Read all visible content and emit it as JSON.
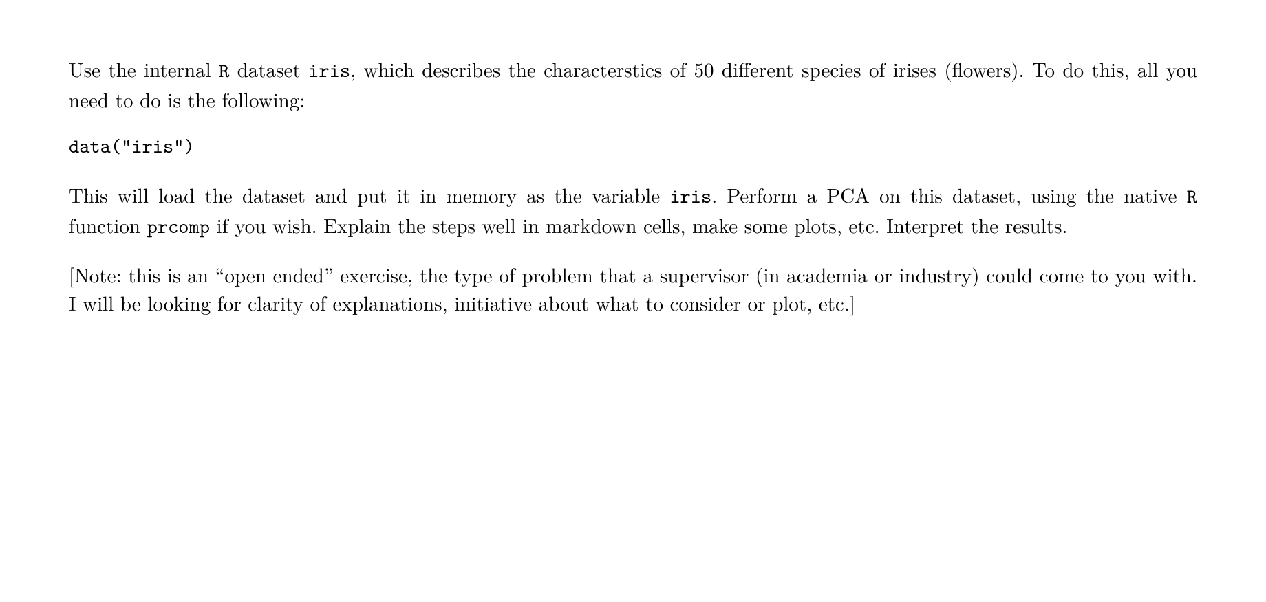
{
  "para1": {
    "seg1": "Use the internal ",
    "code1": "R",
    "seg2": " dataset ",
    "code2": "iris",
    "seg3": ", which describes the characterstics of 50 different species of irises (flowers). To do this, all you need to do is the following:"
  },
  "codeLine": "data(\"iris\")",
  "para2": {
    "seg1": "This will load the dataset and put it in memory as the variable ",
    "code1": "iris",
    "seg2": ". Perform a PCA on this dataset, using the native ",
    "code2": "R",
    "seg3": " function ",
    "code3": "prcomp",
    "seg4": " if you wish. Explain the steps well in markdown cells, make some plots, etc. Interpret the results."
  },
  "para3": "[Note: this is an “open ended” exercise, the type of problem that a supervisor (in academia or industry) could come to you with. I will be looking for clarity of explanations, initiative about what to consider or plot, etc.]"
}
